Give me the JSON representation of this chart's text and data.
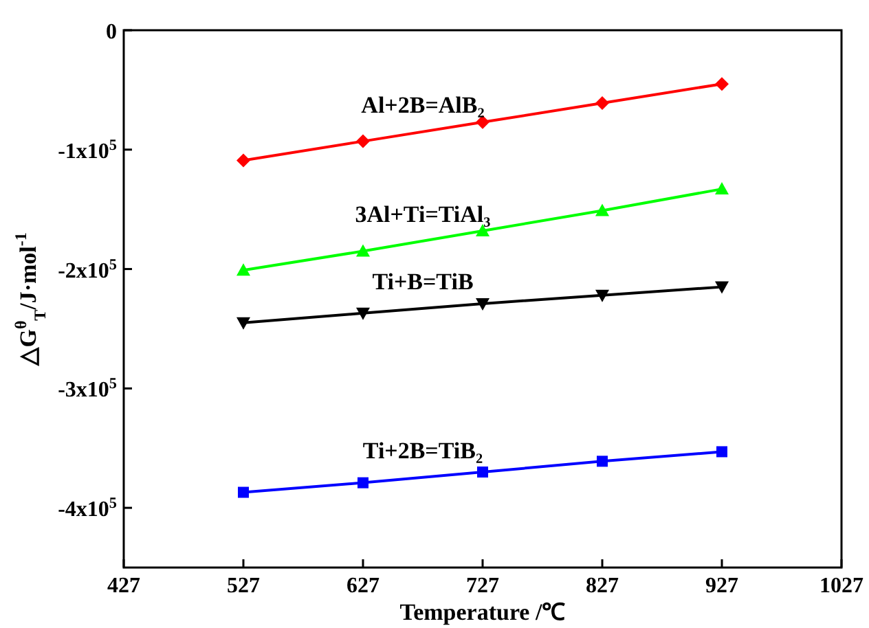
{
  "chart_data": {
    "type": "line",
    "xlabel": "Temperature /℃",
    "ylabel": "△G$^{θ}$$_{T}$/J·mol$^{-1}$",
    "x": [
      527,
      627,
      727,
      827,
      927
    ],
    "xlim": [
      427,
      1027
    ],
    "xticks": [
      427,
      527,
      627,
      727,
      827,
      927,
      1027
    ],
    "ylim": [
      -450000,
      0
    ],
    "yticks": [
      {
        "value": 0,
        "label": "0"
      },
      {
        "value": -100000,
        "label": "-1x10$^{5}$"
      },
      {
        "value": -200000,
        "label": "-2x10$^{5}$"
      },
      {
        "value": -300000,
        "label": "-3x10$^{5}$"
      },
      {
        "value": -400000,
        "label": "-4x10$^{5}$"
      }
    ],
    "grid": false,
    "legend": false,
    "series": [
      {
        "name": "Al+2B=AlB₂",
        "color": "#ff0000",
        "marker": "diamond",
        "values": [
          -109000,
          -93000,
          -77000,
          -61000,
          -45000
        ]
      },
      {
        "name": "3Al+Ti=TiAl₃",
        "color": "#00ff00",
        "marker": "triangle",
        "values": [
          -201000,
          -185000,
          -168000,
          -151000,
          -133000
        ]
      },
      {
        "name": "Ti+B=TiB",
        "color": "#000000",
        "marker": "triangle-down",
        "values": [
          -245000,
          -237000,
          -229000,
          -222000,
          -215000
        ]
      },
      {
        "name": "Ti+2B=TiB₂",
        "color": "#0000ff",
        "marker": "square",
        "values": [
          -387000,
          -379000,
          -370000,
          -361000,
          -353000
        ]
      }
    ]
  }
}
